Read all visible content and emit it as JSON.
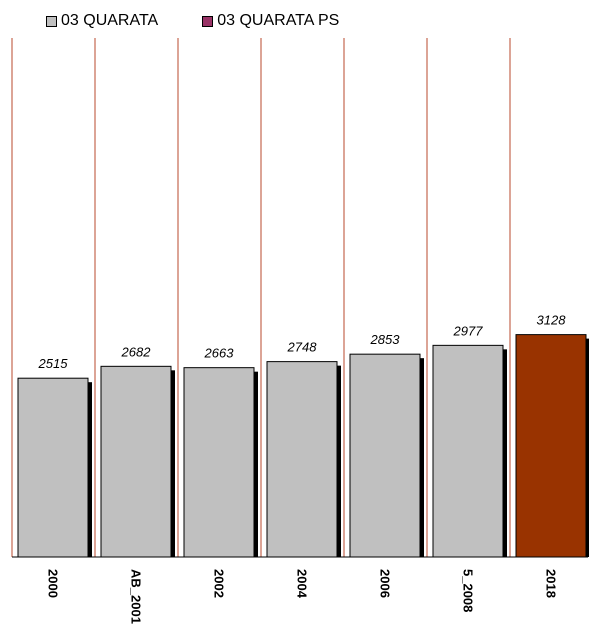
{
  "chart_data": {
    "type": "bar",
    "categories": [
      "2000",
      "AB_2001",
      "2002",
      "2004",
      "2006",
      "5_2008",
      "2018"
    ],
    "values": [
      2515,
      2682,
      2663,
      2748,
      2853,
      2977,
      3128
    ],
    "series": [
      {
        "name": "03 QUARATA",
        "values": [
          2515,
          2682,
          2663,
          2748,
          2853,
          2977,
          null
        ],
        "color": "#c0c0c0"
      },
      {
        "name": "03 QUARATA PS",
        "values": [
          null,
          null,
          null,
          null,
          null,
          null,
          3128
        ],
        "color": "#993300"
      }
    ],
    "legend": {
      "position": "top",
      "swatch_colors": [
        "#c0c0c0",
        "#993366"
      ]
    },
    "grid": {
      "vertical_category_separators": true,
      "separator_color": "#b84a2c"
    },
    "data_labels": true,
    "ylim": [
      0,
      7300
    ]
  }
}
